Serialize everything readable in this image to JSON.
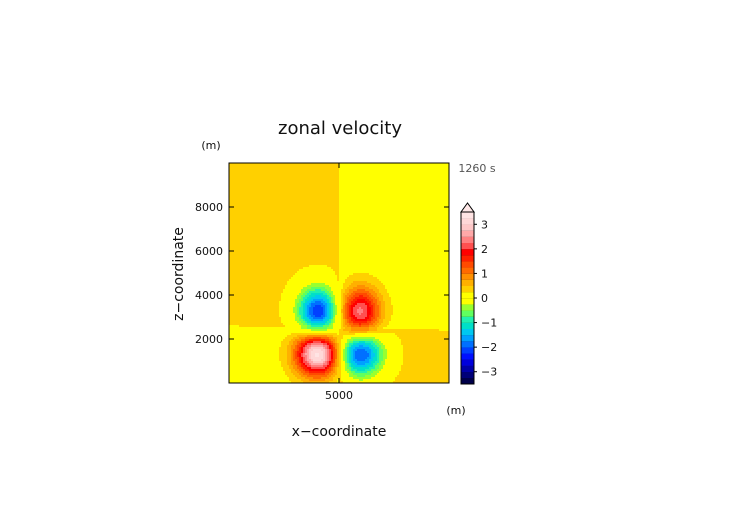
{
  "chart_data": {
    "type": "heatmap",
    "title": "zonal velocity",
    "time_label": "1260 s",
    "xlabel": "x−coordinate",
    "ylabel": "z−coordinate",
    "x_unit": "(m)",
    "z_unit": "(m)",
    "xlim": [
      0,
      10000
    ],
    "zlim": [
      0,
      10000
    ],
    "x_ticks": [
      {
        "value": 5000,
        "label": "5000"
      }
    ],
    "z_ticks": [
      {
        "value": 2000,
        "label": "2000"
      },
      {
        "value": 4000,
        "label": "4000"
      },
      {
        "value": 6000,
        "label": "6000"
      },
      {
        "value": 8000,
        "label": "8000"
      }
    ],
    "colorbar": {
      "levels": [
        -3.5,
        -3.25,
        -3,
        -2.75,
        -2.5,
        -2.25,
        -2,
        -1.75,
        -1.5,
        -1.25,
        -1,
        -0.75,
        -0.5,
        -0.25,
        0,
        0.25,
        0.5,
        0.75,
        1,
        1.25,
        1.5,
        1.75,
        2,
        2.25,
        2.5,
        2.75,
        3,
        3.25,
        3.5
      ],
      "colors": [
        "#00004a",
        "#000078",
        "#0000a8",
        "#0000dc",
        "#0010ff",
        "#0040ff",
        "#0070ff",
        "#00a0ff",
        "#00c8f0",
        "#00e0c8",
        "#20f0b0",
        "#60ff60",
        "#98ff30",
        "#ffff00",
        "#ffff00",
        "#ffd000",
        "#ffb000",
        "#ff9000",
        "#ff6a00",
        "#ff4a00",
        "#ff2000",
        "#ff0000",
        "#ff5050",
        "#ff8080",
        "#ffa8a8",
        "#ffc8c8",
        "#ffd8d8",
        "#ffe4e4"
      ],
      "tick_labels": [
        {
          "value": 3,
          "label": "3"
        },
        {
          "value": 2,
          "label": "2"
        },
        {
          "value": 1,
          "label": "1"
        },
        {
          "value": 0,
          "label": "0"
        },
        {
          "value": -1,
          "label": "−1"
        },
        {
          "value": -2,
          "label": "−2"
        },
        {
          "value": -3,
          "label": "−3"
        }
      ],
      "extend": "max"
    },
    "field": {
      "background": [
        {
          "region": "upper-left",
          "value": 0.3
        },
        {
          "region": "upper-right",
          "value": 0.1
        },
        {
          "region": "lower-left",
          "value": 0.1
        },
        {
          "region": "lower-right",
          "value": 0.3
        }
      ],
      "features": [
        {
          "x": 4050,
          "z": 3200,
          "amplitude": -2.6,
          "rx": 900,
          "rz": 1100
        },
        {
          "x": 5950,
          "z": 3200,
          "amplitude": 2.3,
          "rx": 900,
          "rz": 1100
        },
        {
          "x": 4050,
          "z": 1350,
          "amplitude": 3.4,
          "rx": 1000,
          "rz": 1000
        },
        {
          "x": 5950,
          "z": 1350,
          "amplitude": -2.5,
          "rx": 1000,
          "rz": 1000
        }
      ]
    }
  }
}
